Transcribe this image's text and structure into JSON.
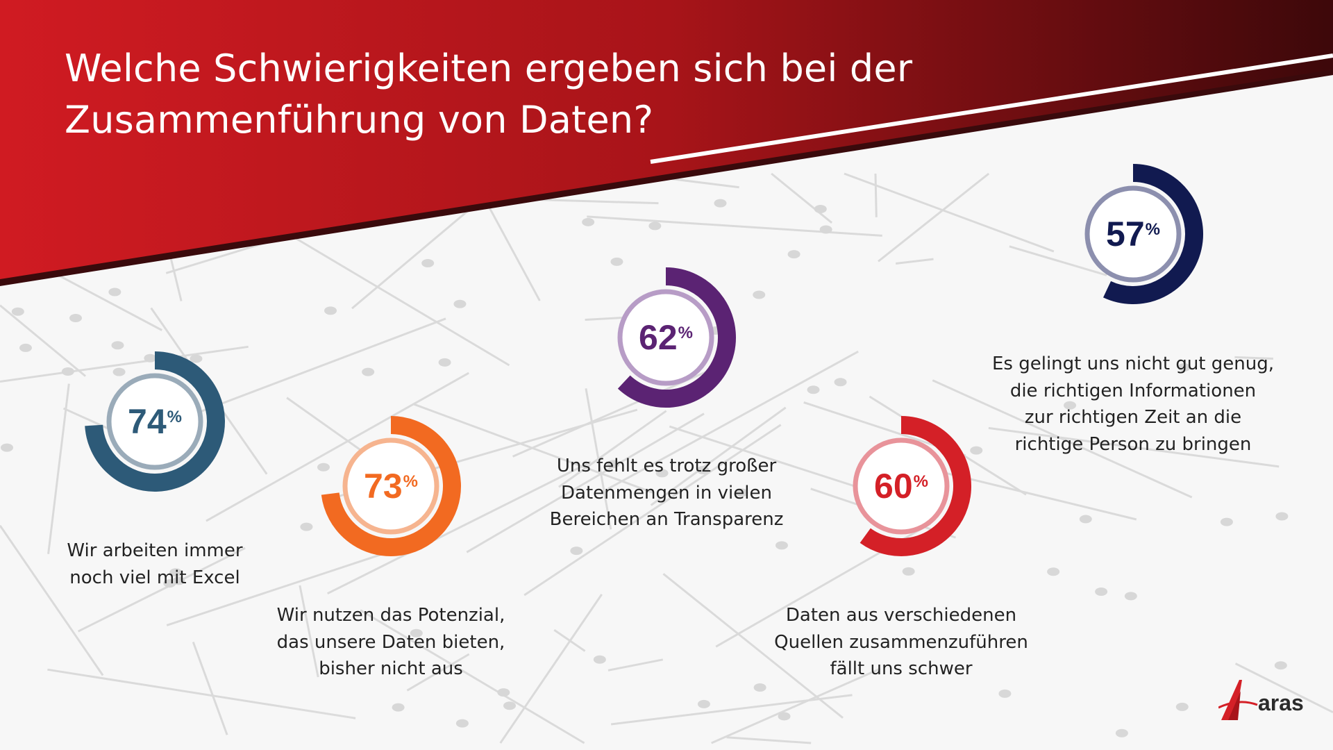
{
  "title": {
    "line1": "Welche Schwierigkeiten ergeben sich bei der",
    "line2": "Zusammenführung von Daten?"
  },
  "colors": {
    "header_red": "#c8161d",
    "header_dark": "#4a0a0c"
  },
  "items": [
    {
      "value": "74",
      "unit": "%",
      "color": "#2d5a78",
      "inner_color": "#9aabb9",
      "label": [
        "Wir arbeiten immer",
        "noch viel mit Excel"
      ]
    },
    {
      "value": "73",
      "unit": "%",
      "color": "#f26a21",
      "inner_color": "#f6b48f",
      "label": [
        "Wir nutzen das Potenzial,",
        "das unsere Daten bieten,",
        "bisher nicht aus"
      ]
    },
    {
      "value": "62",
      "unit": "%",
      "color": "#5b2373",
      "inner_color": "#b79cc6",
      "label": [
        "Uns fehlt es trotz großer",
        "Datenmengen in vielen",
        "Bereichen an Transparenz"
      ]
    },
    {
      "value": "60",
      "unit": "%",
      "color": "#d42027",
      "inner_color": "#e8939a",
      "label": [
        "Daten aus verschiedenen",
        "Quellen zusammenzuführen",
        "fällt uns schwer"
      ]
    },
    {
      "value": "57",
      "unit": "%",
      "color": "#111a50",
      "inner_color": "#8c8fae",
      "label": [
        "Es gelingt uns nicht gut genug,",
        "die richtigen Informationen",
        "zur richtigen Zeit an die",
        "richtige Person zu bringen"
      ]
    }
  ],
  "logo": {
    "text": "aras"
  },
  "chart_data": {
    "type": "pie",
    "title": "Welche Schwierigkeiten ergeben sich bei der Zusammenführung von Daten?",
    "categories": [
      "Wir arbeiten immer noch viel mit Excel",
      "Wir nutzen das Potenzial, das unsere Daten bieten, bisher nicht aus",
      "Uns fehlt es trotz großer Datenmengen in vielen Bereichen an Transparenz",
      "Daten aus verschiedenen Quellen zusammenzuführen fällt uns schwer",
      "Es gelingt uns nicht gut genug, die richtigen Informationen zur richtigen Zeit an die richtige Person zu bringen"
    ],
    "values": [
      74,
      73,
      62,
      60,
      57
    ],
    "unit": "%"
  }
}
